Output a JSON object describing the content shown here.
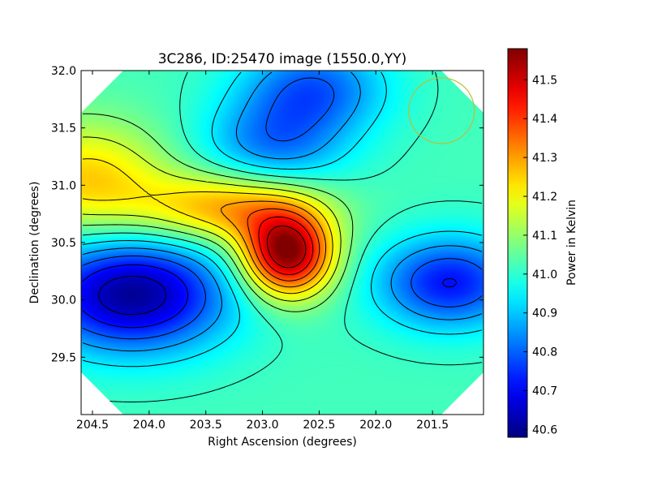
{
  "chart_data": {
    "type": "heatmap",
    "title": "3C286, ID:25470 image (1550.0,YY)",
    "xlabel": "Right Ascension (degrees)",
    "ylabel": "Declination (degrees)",
    "xlim": [
      204.6,
      201.05
    ],
    "ylim": [
      29.0,
      32.0
    ],
    "x_reversed": true,
    "x_ticks": [
      204.5,
      204.0,
      203.5,
      203.0,
      202.5,
      202.0,
      201.5
    ],
    "x_tick_labels": [
      "204.5",
      "204.0",
      "203.5",
      "203.0",
      "202.5",
      "202.0",
      "201.5"
    ],
    "y_ticks": [
      29.5,
      30.0,
      30.5,
      31.0,
      31.5,
      32.0
    ],
    "y_tick_labels": [
      "29.5",
      "30.0",
      "30.5",
      "31.0",
      "31.5",
      "32.0"
    ],
    "colormap": "jet",
    "colorbar": {
      "label": "Power in Kelvin",
      "range": [
        40.58,
        41.58
      ],
      "ticks": [
        40.6,
        40.7,
        40.8,
        40.9,
        41.0,
        41.1,
        41.2,
        41.3,
        41.4,
        41.5
      ],
      "tick_labels": [
        "40.6",
        "40.7",
        "40.8",
        "40.9",
        "41.0",
        "41.1",
        "41.2",
        "41.3",
        "41.4",
        "41.5"
      ]
    },
    "features": [
      {
        "kind": "peak",
        "ra": 202.78,
        "dec": 30.4,
        "value": 41.58
      },
      {
        "kind": "ridge",
        "ra": 203.3,
        "dec": 30.8,
        "value": 41.3
      },
      {
        "kind": "local-high",
        "ra": 204.55,
        "dec": 31.05,
        "value": 41.25
      },
      {
        "kind": "local-low",
        "ra": 204.15,
        "dec": 30.05,
        "value": 40.6
      },
      {
        "kind": "local-low",
        "ra": 201.35,
        "dec": 30.15,
        "value": 40.72
      },
      {
        "kind": "local-low",
        "ra": 202.55,
        "dec": 31.85,
        "value": 40.8
      },
      {
        "kind": "local-low",
        "ra": 202.9,
        "dec": 31.35,
        "value": 40.83
      }
    ],
    "contour_levels": 13,
    "beam_circle": {
      "ra": 201.42,
      "dec": 31.65,
      "radius_deg": 0.29,
      "color": "#bdbd35"
    },
    "masked_corners": true,
    "grid": false
  }
}
